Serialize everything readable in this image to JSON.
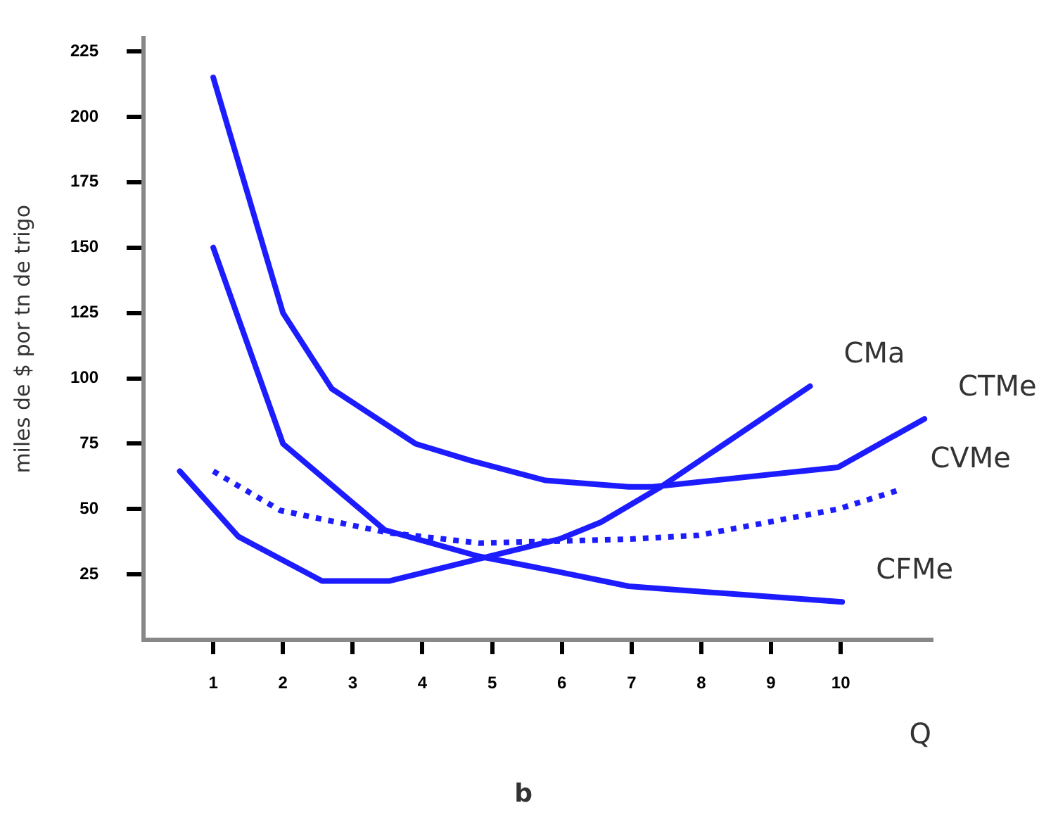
{
  "chart_data": {
    "type": "line",
    "ylabel": "miles de $ por tn de trigo",
    "xlabel": "Q",
    "annotations": [
      "b"
    ],
    "xlim": [
      0,
      11.3
    ],
    "ylim": [
      0,
      230
    ],
    "xticks": [
      1,
      2,
      3,
      4,
      5,
      6,
      7,
      8,
      9,
      10
    ],
    "yticks": [
      25,
      50,
      75,
      100,
      125,
      150,
      175,
      200,
      225
    ],
    "grid": false,
    "legend": false,
    "marker": "none",
    "series": [
      {
        "name": "CMa",
        "color": "#1c1cff",
        "line_style": "solid",
        "x": [
          0.52,
          1.36,
          2.56,
          3.52,
          4.82,
          5.96,
          6.56,
          7.42,
          9.56
        ],
        "values": [
          64.5,
          39.5,
          22.5,
          22.5,
          31,
          38.5,
          45,
          58.5,
          97
        ]
      },
      {
        "name": "CTMe",
        "color": "#1c1cff",
        "line_style": "solid",
        "x": [
          1,
          2,
          2.7,
          3.9,
          4.7,
          5.76,
          6.96,
          7.3,
          9.96,
          11.2
        ],
        "values": [
          215,
          125,
          96,
          75,
          68.5,
          61,
          58.5,
          58.5,
          66,
          84.5
        ]
      },
      {
        "name": "CVMe",
        "color": "#1c1cff",
        "line_style": "dotted",
        "x": [
          1,
          1.96,
          3.5,
          4.82,
          6.96,
          7.96,
          9.96,
          10.8
        ],
        "values": [
          64.5,
          49.5,
          41,
          37,
          38.5,
          40,
          50,
          57
        ]
      },
      {
        "name": "CFMe",
        "color": "#1c1cff",
        "line_style": "solid",
        "x": [
          1,
          2,
          3.46,
          4.8,
          5.96,
          6.96,
          10.02
        ],
        "values": [
          150,
          75,
          42,
          32,
          26,
          20.5,
          14.5
        ]
      }
    ]
  }
}
